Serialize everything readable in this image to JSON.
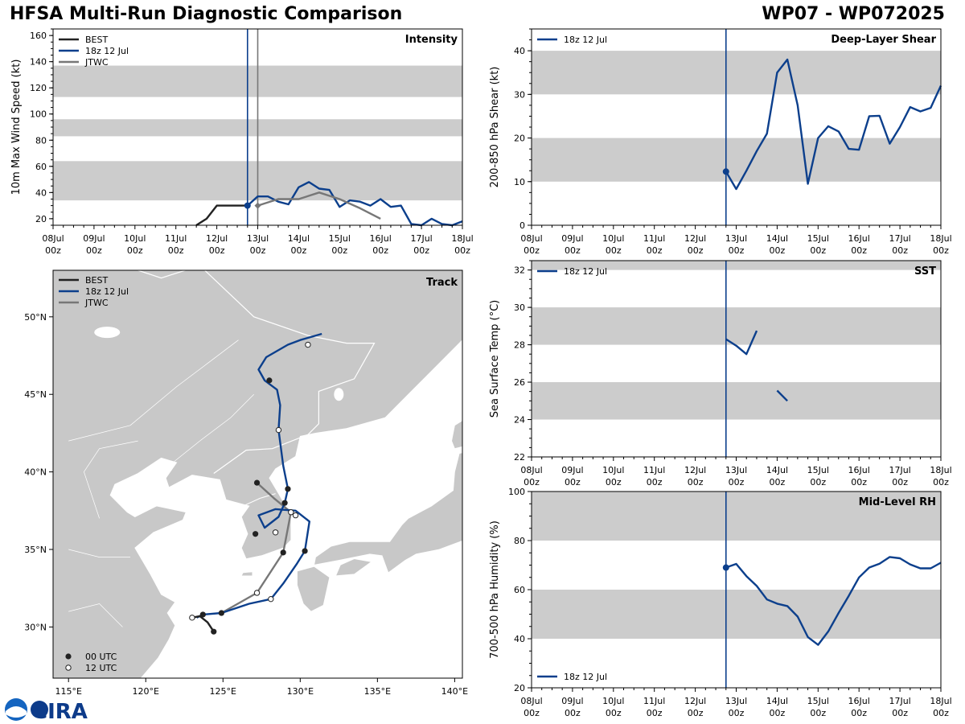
{
  "header": {
    "title": "HFSA Multi-Run Diagnostic Comparison",
    "storm": "WP07 - WP072025"
  },
  "colors": {
    "best": "#222222",
    "run": "#0c3f8c",
    "jtwc": "#777777",
    "band": "#cccccc",
    "land": "#c8c8c8"
  },
  "logo_text": "CIRA",
  "time_ticks": [
    {
      "d": "08Jul",
      "h": "00z"
    },
    {
      "d": "09Jul",
      "h": "00z"
    },
    {
      "d": "10Jul",
      "h": "00z"
    },
    {
      "d": "11Jul",
      "h": "00z"
    },
    {
      "d": "12Jul",
      "h": "00z"
    },
    {
      "d": "13Jul",
      "h": "00z"
    },
    {
      "d": "14Jul",
      "h": "00z"
    },
    {
      "d": "15Jul",
      "h": "00z"
    },
    {
      "d": "16Jul",
      "h": "00z"
    },
    {
      "d": "17Jul",
      "h": "00z"
    },
    {
      "d": "18Jul",
      "h": "00z"
    }
  ],
  "chart_data": [
    {
      "type": "line",
      "title": "Intensity",
      "ylabel": "10m Max Wind Speed (kt)",
      "xlim": [
        0,
        10
      ],
      "ylim": [
        15,
        165
      ],
      "yticks": [
        20,
        40,
        60,
        80,
        100,
        120,
        140,
        160
      ],
      "bands": [
        [
          34,
          64
        ],
        [
          83,
          96
        ],
        [
          113,
          137
        ]
      ],
      "init_lines": [
        {
          "x": 4.75,
          "series": "18z 12 Jul"
        },
        {
          "x": 5.0,
          "series": "JTWC"
        }
      ],
      "legend": [
        "BEST",
        "18z 12 Jul",
        "JTWC"
      ],
      "series": [
        {
          "name": "BEST",
          "color": "best",
          "x": [
            3.5,
            3.75,
            4.0,
            4.25,
            4.5,
            4.75
          ],
          "y": [
            15,
            20,
            30,
            30,
            30,
            30
          ]
        },
        {
          "name": "18z 12 Jul",
          "color": "run",
          "marker_first": true,
          "x": [
            4.75,
            5.0,
            5.25,
            5.5,
            5.75,
            6.0,
            6.25,
            6.5,
            6.75,
            7.0,
            7.25,
            7.5,
            7.75,
            8.0,
            8.25,
            8.5,
            8.75,
            9.0,
            9.25,
            9.5,
            9.75,
            10.0
          ],
          "y": [
            30,
            37,
            37,
            33,
            31,
            44,
            48,
            43,
            42,
            29,
            34,
            33,
            30,
            35,
            29,
            30,
            16,
            14,
            20,
            16,
            15,
            18
          ]
        },
        {
          "name": "JTWC",
          "color": "jtwc",
          "marker_first": true,
          "x": [
            5.0,
            5.5,
            6.0,
            6.5,
            7.0,
            7.5,
            8.0
          ],
          "y": [
            30,
            35,
            35,
            40,
            35,
            28,
            20
          ]
        }
      ]
    },
    {
      "type": "line",
      "title": "Deep-Layer Shear",
      "ylabel": "200-850 hPa Shear (kt)",
      "xlim": [
        0,
        10
      ],
      "ylim": [
        0,
        45
      ],
      "yticks": [
        0,
        10,
        20,
        30,
        40
      ],
      "bands": [
        [
          10,
          20
        ],
        [
          30,
          40
        ]
      ],
      "init_lines": [
        {
          "x": 4.75,
          "series": "18z 12 Jul"
        }
      ],
      "legend": [
        "18z 12 Jul"
      ],
      "series": [
        {
          "name": "18z 12 Jul",
          "color": "run",
          "marker_first": true,
          "x": [
            4.75,
            5.0,
            5.25,
            5.5,
            5.75,
            6.0,
            6.25,
            6.5,
            6.75,
            7.0,
            7.25,
            7.5,
            7.75,
            8.0,
            8.25,
            8.5,
            8.75,
            9.0,
            9.25,
            9.5,
            9.75,
            10.0
          ],
          "y": [
            12.3,
            8.3,
            12.5,
            17,
            21,
            35,
            38,
            27.5,
            9.5,
            20,
            22.7,
            21.5,
            17.5,
            17.3,
            25,
            25.1,
            18.7,
            22.5,
            27.1,
            26.1,
            26.9,
            32
          ]
        }
      ]
    },
    {
      "type": "line",
      "title": "SST",
      "ylabel": "Sea Surface Temp (°C)",
      "xlim": [
        0,
        10
      ],
      "ylim": [
        22,
        32.5
      ],
      "yticks": [
        22,
        24,
        26,
        28,
        30,
        32
      ],
      "bands": [
        [
          24,
          26
        ],
        [
          28,
          30
        ],
        [
          32,
          32.5
        ]
      ],
      "init_lines": [
        {
          "x": 4.75,
          "series": "18z 12 Jul"
        }
      ],
      "legend": [
        "18z 12 Jul"
      ],
      "series": [
        {
          "name": "18z 12 Jul",
          "color": "run",
          "segments": [
            {
              "x": [
                4.75,
                5.0,
                5.25,
                5.5
              ],
              "y": [
                28.3,
                27.95,
                27.5,
                28.75
              ]
            },
            {
              "x": [
                6.0,
                6.25
              ],
              "y": [
                25.55,
                25.0
              ]
            }
          ]
        }
      ]
    },
    {
      "type": "line",
      "title": "Mid-Level RH",
      "ylabel": "700-500 hPa Humidity (%)",
      "xlim": [
        0,
        10
      ],
      "ylim": [
        20,
        100
      ],
      "yticks": [
        20,
        40,
        60,
        80,
        100
      ],
      "bands": [
        [
          40,
          60
        ],
        [
          80,
          100
        ]
      ],
      "init_lines": [
        {
          "x": 4.75,
          "series": "18z 12 Jul"
        }
      ],
      "legend": [
        "18z 12 Jul"
      ],
      "series": [
        {
          "name": "18z 12 Jul",
          "color": "run",
          "marker_first": true,
          "x": [
            4.75,
            5.0,
            5.25,
            5.5,
            5.75,
            6.0,
            6.25,
            6.5,
            6.75,
            7.0,
            7.25,
            7.5,
            7.75,
            8.0,
            8.25,
            8.5,
            8.75,
            9.0,
            9.25,
            9.5,
            9.75,
            10.0
          ],
          "y": [
            69,
            70.5,
            65.5,
            61.5,
            56,
            54.3,
            53.3,
            49,
            40.7,
            37.5,
            43,
            50.5,
            57.5,
            65,
            69,
            70.6,
            73.3,
            72.8,
            70.3,
            68.7,
            68.7,
            71
          ]
        }
      ]
    },
    {
      "type": "scatter",
      "title": "Track",
      "xlim": [
        114,
        140.5
      ],
      "ylim": [
        26.7,
        53
      ],
      "xticks": [
        {
          "v": 115,
          "label": "115°E"
        },
        {
          "v": 120,
          "label": "120°E"
        },
        {
          "v": 125,
          "label": "125°E"
        },
        {
          "v": 130,
          "label": "130°E"
        },
        {
          "v": 135,
          "label": "135°E"
        },
        {
          "v": 140,
          "label": "140°E"
        }
      ],
      "yticks": [
        {
          "v": 30,
          "label": "30°N"
        },
        {
          "v": 35,
          "label": "35°N"
        },
        {
          "v": 40,
          "label": "40°N"
        },
        {
          "v": 45,
          "label": "45°N"
        },
        {
          "v": 50,
          "label": "50°N"
        }
      ],
      "legend": [
        "BEST",
        "18z 12 Jul",
        "JTWC"
      ],
      "marker_legend": [
        "00 UTC",
        "12 UTC"
      ],
      "series": [
        {
          "name": "BEST",
          "color": "best",
          "lon": [
            124.4,
            124.0,
            123.5,
            123.0
          ],
          "lat": [
            29.7,
            30.3,
            30.7,
            30.6
          ],
          "markers": [
            {
              "lon": 124.4,
              "lat": 29.7,
              "t": "00"
            },
            {
              "lon": 123.0,
              "lat": 30.6,
              "t": "12"
            }
          ]
        },
        {
          "name": "18z 12 Jul",
          "color": "run",
          "lon": [
            123.3,
            123.7,
            124.9,
            126.7,
            128.1,
            128.9,
            129.8,
            130.3,
            130.6,
            129.7,
            128.4,
            127.3,
            127.7,
            128.6,
            129.0,
            129.2,
            128.9,
            128.6,
            128.7,
            128.5,
            127.7,
            127.3,
            127.8,
            129.2,
            130.0,
            131.4
          ],
          "lat": [
            30.6,
            30.8,
            30.9,
            31.5,
            31.8,
            32.8,
            34.1,
            34.9,
            36.8,
            37.5,
            37.6,
            37.2,
            36.4,
            37.1,
            38.0,
            38.9,
            40.4,
            42.7,
            44.3,
            45.3,
            45.9,
            46.6,
            47.4,
            48.2,
            48.5,
            48.9
          ],
          "markers": [
            {
              "lon": 123.7,
              "lat": 30.8,
              "t": "00"
            },
            {
              "lon": 128.1,
              "lat": 31.8,
              "t": "12"
            },
            {
              "lon": 130.3,
              "lat": 34.9,
              "t": "00"
            },
            {
              "lon": 129.7,
              "lat": 37.2,
              "t": "12"
            },
            {
              "lon": 128.4,
              "lat": 36.1,
              "t": "12"
            },
            {
              "lon": 129.0,
              "lat": 38.0,
              "t": "00"
            },
            {
              "lon": 129.2,
              "lat": 38.9,
              "t": "00"
            },
            {
              "lon": 128.6,
              "lat": 42.7,
              "t": "12"
            },
            {
              "lon": 128.0,
              "lat": 45.9,
              "t": "00"
            },
            {
              "lon": 130.5,
              "lat": 48.2,
              "t": "12"
            }
          ]
        },
        {
          "name": "JTWC",
          "color": "jtwc",
          "lon": [
            124.9,
            127.2,
            128.9,
            129.4,
            128.3,
            127.2
          ],
          "lat": [
            30.9,
            32.2,
            34.8,
            37.4,
            38.3,
            39.3
          ],
          "markers": [
            {
              "lon": 124.9,
              "lat": 30.9,
              "t": "00"
            },
            {
              "lon": 127.2,
              "lat": 32.2,
              "t": "12"
            },
            {
              "lon": 128.9,
              "lat": 34.8,
              "t": "00"
            },
            {
              "lon": 129.4,
              "lat": 37.4,
              "t": "12"
            },
            {
              "lon": 127.2,
              "lat": 39.3,
              "t": "00"
            },
            {
              "lon": 127.1,
              "lat": 36.0,
              "t": "00"
            }
          ]
        }
      ]
    }
  ]
}
